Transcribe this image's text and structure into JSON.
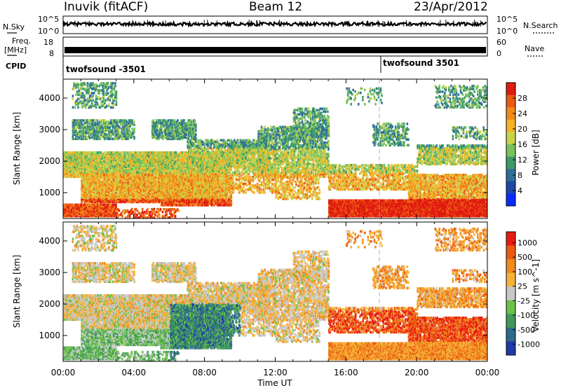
{
  "header": {
    "station": "Inuvik (fitACF)",
    "beam": "Beam 12",
    "date": "23/Apr/2012"
  },
  "strip": {
    "nsky_label": "N.Sky",
    "nsky_ticks": [
      "10^5",
      "10^0"
    ],
    "nsearch_label": "N.Search",
    "nsearch_ticks": [
      "10^5",
      "10^0"
    ],
    "freq_label": "Freq.",
    "freq_unit": "[MHz]",
    "freq_ticks": [
      "18",
      "8"
    ],
    "nave_label": "Nave",
    "nave_ticks": [
      "60",
      "0"
    ],
    "cpid_label": "CPID",
    "cpid_segments": [
      {
        "name": "twofsound -3501",
        "start_hour": 0
      },
      {
        "name": "twofsound 3501",
        "start_hour": 18
      }
    ]
  },
  "colors": {
    "power": [
      "#0a2cff",
      "#1d48a8",
      "#2f6f9a",
      "#3f9a6a",
      "#79c25a",
      "#c8d24a",
      "#f6b326",
      "#f08a1a",
      "#ec5a12",
      "#e01b10"
    ],
    "velocity": [
      "#1f3aa8",
      "#2f6a8a",
      "#3f9a5a",
      "#6cc14a",
      "#c8c8c8",
      "#f5b23a",
      "#f08a1f",
      "#ec5a12",
      "#e81b10"
    ],
    "trace": "#000000",
    "grid": "#b0b0b0"
  },
  "chart_data": [
    {
      "type": "heatmap",
      "title": "",
      "xlabel": "",
      "ylabel": "Slant Range [km]",
      "x_ticks": [
        "00:00",
        "04:00",
        "08:00",
        "12:00",
        "16:00",
        "20:00",
        "00:00"
      ],
      "xlim": [
        0,
        24
      ],
      "y_ticks": [
        1000,
        2000,
        3000,
        4000
      ],
      "ylim": [
        180,
        4600
      ],
      "colorbar": {
        "label": "Power [dB]",
        "ticks": [
          4,
          8,
          12,
          16,
          20,
          24,
          28
        ],
        "range": [
          0,
          32
        ]
      }
    },
    {
      "type": "heatmap",
      "title": "",
      "xlabel": "Time UT",
      "ylabel": "Slant Range [km]",
      "x_ticks": [
        "00:00",
        "04:00",
        "08:00",
        "12:00",
        "16:00",
        "20:00",
        "00:00"
      ],
      "xlim": [
        0,
        24
      ],
      "y_ticks": [
        1000,
        2000,
        3000,
        4000
      ],
      "ylim": [
        180,
        4600
      ],
      "colorbar": {
        "label": "Velocity [m s^-1]",
        "ticks": [
          "1000",
          "500",
          "100",
          "25",
          "-25",
          "-100",
          "-500",
          "-1000"
        ]
      }
    }
  ]
}
